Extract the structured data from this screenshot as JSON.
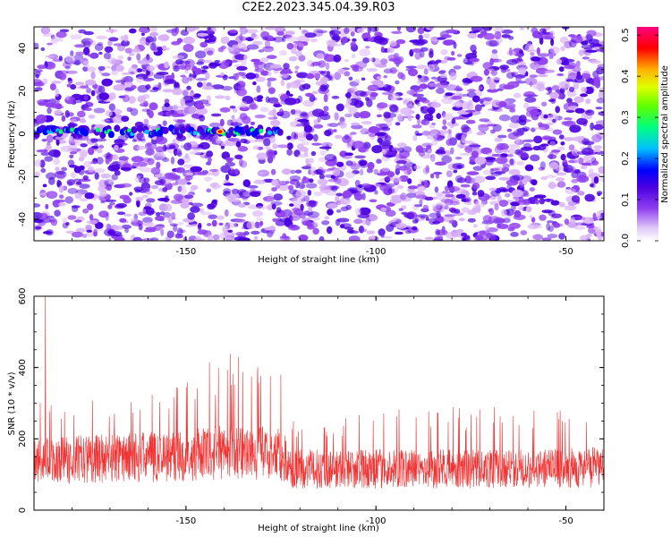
{
  "title": "C2E2.2023.345.04.39.R03",
  "colors": {
    "axis": "#000000",
    "snr_line": "#f03232",
    "background": "#ffffff"
  },
  "chart_data": [
    {
      "type": "heatmap",
      "xlabel": "Height of straight line (km)",
      "ylabel": "Frequency (Hz)",
      "xlim": [
        -190,
        -40
      ],
      "ylim": [
        -50,
        50
      ],
      "x_ticks": [
        -150,
        -100,
        -50
      ],
      "y_ticks": [
        -40,
        -20,
        0,
        20,
        40
      ],
      "colormap": [
        "#ffffff",
        "#d8b0f8",
        "#9040f0",
        "#4b00e0",
        "#0000ff",
        "#00c0ff",
        "#00ff60",
        "#c0ff00",
        "#ffe000",
        "#ff0000",
        "#ff0080"
      ],
      "colorbar": {
        "label": "Normalized spectral amplitude",
        "range": [
          0.0,
          0.52
        ],
        "ticks": [
          "0.0",
          "0.1",
          "0.2",
          "0.3",
          "0.4",
          "0.5"
        ]
      },
      "features": [
        {
          "x_range": [
            -190,
            -125
          ],
          "frequency_hz": 1,
          "peak_amplitude": 0.52,
          "peak_x": -141
        }
      ]
    },
    {
      "type": "line",
      "xlabel": "Height of straight line (km)",
      "ylabel": "SNR (10 * v/v)",
      "xlim": [
        -190,
        -40
      ],
      "ylim": [
        0,
        600
      ],
      "x_ticks": [
        -150,
        -100,
        -50
      ],
      "y_ticks": [
        0,
        200,
        400,
        600
      ],
      "series": [
        {
          "values": [
            {
              "x": -190,
              "baseline_mean": 130,
              "upper_envelope": 300
            },
            {
              "x": -187,
              "peak": 600
            },
            {
              "x": -170,
              "baseline_mean": 140,
              "upper_envelope": 330
            },
            {
              "x": -150,
              "baseline_mean": 145,
              "upper_envelope": 360
            },
            {
              "x": -140,
              "baseline_mean": 155,
              "upper_envelope": 450
            },
            {
              "x": -125,
              "baseline_mean": 150,
              "upper_envelope": 440
            },
            {
              "x": -122,
              "baseline_mean": 110,
              "upper_envelope": 250
            },
            {
              "x": -100,
              "baseline_mean": 110,
              "upper_envelope": 280
            },
            {
              "x": -80,
              "baseline_mean": 110,
              "upper_envelope": 290
            },
            {
              "x": -60,
              "baseline_mean": 110,
              "upper_envelope": 300
            },
            {
              "x": -40,
              "baseline_mean": 115,
              "upper_envelope": 280
            }
          ]
        }
      ]
    }
  ]
}
